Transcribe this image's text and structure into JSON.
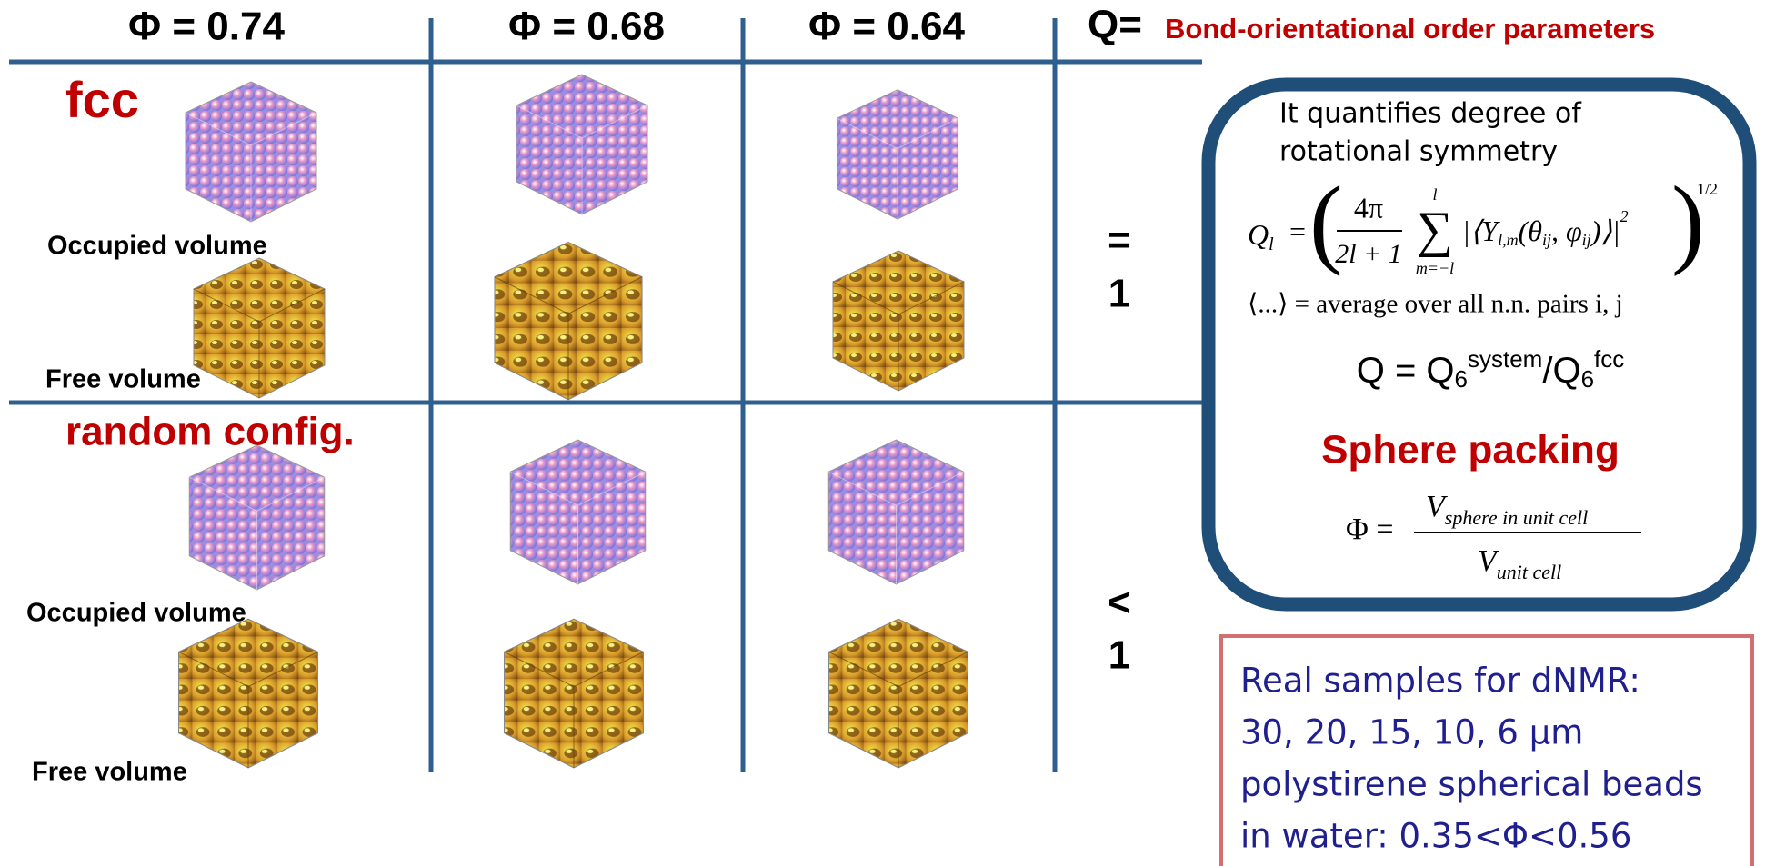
{
  "header": {
    "columns": [
      "Φ = 0.74",
      "Φ = 0.68",
      "Φ = 0.64"
    ],
    "q_label": "Q=",
    "q_title": "Bond-orientational order parameters"
  },
  "rows": [
    {
      "label": "fcc",
      "occupied": "Occupied volume",
      "free": "Free volume",
      "q": [
        "=",
        "1"
      ]
    },
    {
      "label": "random config.",
      "occupied": "Occupied volume",
      "free": "Free volume",
      "q": [
        "<",
        "1"
      ]
    }
  ],
  "definition_box": {
    "intro": [
      "It quantifies degree of",
      "rotational symmetry"
    ],
    "ql": {
      "lhs": "Q",
      "lhs_sub": "l",
      "equals": "=",
      "open": "(",
      "numerator": "4π",
      "denominator": "2l + 1",
      "sum": "∑",
      "sum_top": "l",
      "sum_bottom": "m=−l",
      "term_open": "|⟨Y",
      "term_sub": "l,m",
      "arg1": "(θ",
      "arg_sub": "ij",
      "arg2": ", φ",
      "term_close": ")⟩|",
      "power": "2",
      "close": ")",
      "outer_power": "1/2"
    },
    "average_note": "⟨...⟩ = average over all n.n. pairs i, j",
    "q_def": {
      "lhs": "Q = Q",
      "sub": "6",
      "sup_num": "system",
      "slash": "/Q",
      "sup_den": "fcc"
    },
    "packing_title": "Sphere packing",
    "phi": {
      "lhs": "Φ =",
      "var": "V",
      "num_sub": "sphere in unit cell",
      "den_sub": "unit cell"
    }
  },
  "samples_box": {
    "lines": [
      "Real samples for dNMR:",
      "30, 20, 15, 10, 6 μm",
      "polystirene spherical beads",
      "in water: 0.35<Φ<0.56"
    ]
  }
}
